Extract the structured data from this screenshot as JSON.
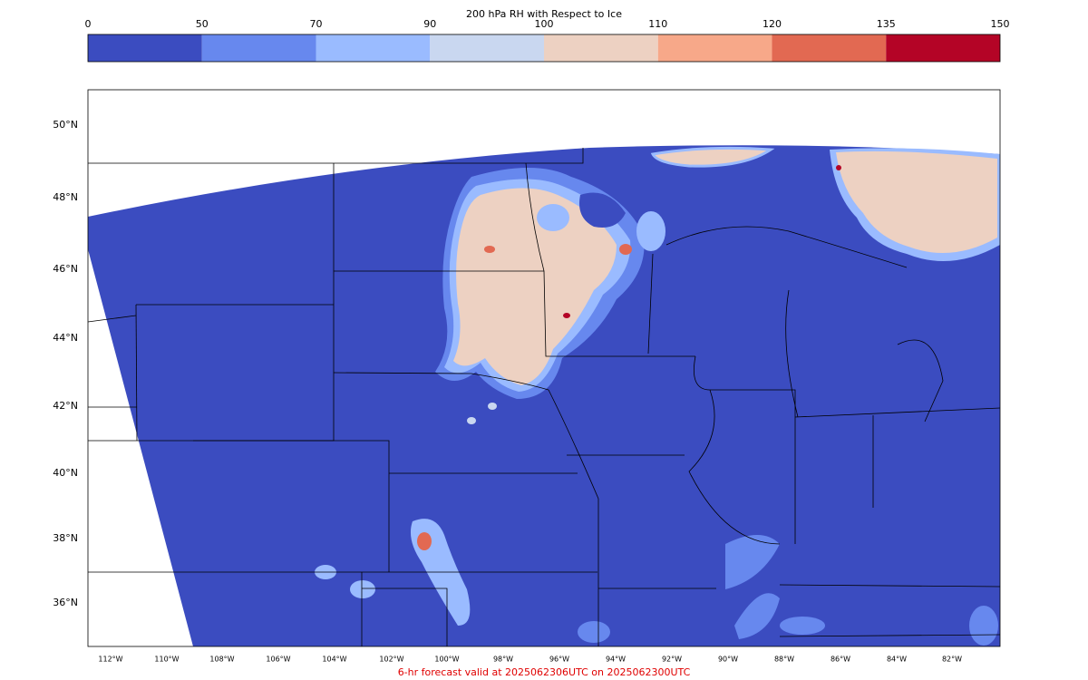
{
  "title": "200 hPa RH with Respect to Ice",
  "colorbar": {
    "levels": [
      0,
      50,
      70,
      90,
      100,
      110,
      120,
      135,
      150
    ],
    "colors": [
      "#3b4cc0",
      "#6788ee",
      "#9abbff",
      "#c9d7f0",
      "#edd1c2",
      "#f7a889",
      "#e26952",
      "#b40426"
    ]
  },
  "map": {
    "lat_labels": [
      "50°N",
      "48°N",
      "46°N",
      "44°N",
      "42°N",
      "40°N",
      "38°N",
      "36°N"
    ],
    "lon_labels": [
      "112°W",
      "110°W",
      "108°W",
      "106°W",
      "104°W",
      "102°W",
      "100°W",
      "98°W",
      "96°W",
      "94°W",
      "92°W",
      "90°W",
      "88°W",
      "86°W",
      "84°W",
      "82°W"
    ]
  },
  "footer": "6-hr forecast valid at 2025062306UTC on 2025062300UTC"
}
